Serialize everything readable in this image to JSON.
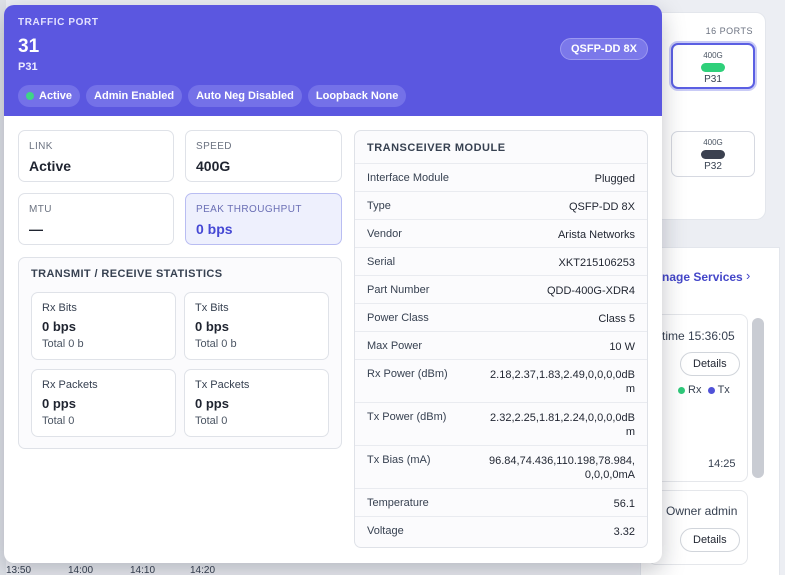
{
  "background": {
    "ports_count": "16 PORTS",
    "port_tiles": [
      {
        "speed": "400G",
        "name": "P31",
        "led_color": "#2fd07a"
      },
      {
        "speed": "400G",
        "name": "P32",
        "led_color": "#3b4150"
      }
    ],
    "manage_services": "nage Services",
    "time_text": "time 15:36:05",
    "details_label": "Details",
    "legend_rx": "Rx",
    "legend_tx": "Tx",
    "tick_time": "14:25",
    "owner_text": "Owner admin",
    "bottom_ticks": [
      "13:50",
      "14:00",
      "14:10",
      "14:20"
    ]
  },
  "header": {
    "label": "TRAFFIC PORT",
    "title": "31",
    "subtitle": "P31",
    "badge": "QSFP-DD 8X",
    "chips": [
      "Active",
      "Admin Enabled",
      "Auto Neg Disabled",
      "Loopback None"
    ]
  },
  "metrics": {
    "link": {
      "label": "LINK",
      "value": "Active"
    },
    "speed": {
      "label": "SPEED",
      "value": "400G"
    },
    "mtu": {
      "label": "MTU",
      "value": "—"
    },
    "peak": {
      "label": "PEAK THROUGHPUT",
      "value": "0 bps"
    }
  },
  "stats": {
    "title": "TRANSMIT / RECEIVE STATISTICS",
    "rx_bits": {
      "label": "Rx Bits",
      "value": "0 bps",
      "total": "Total 0 b"
    },
    "tx_bits": {
      "label": "Tx Bits",
      "value": "0 bps",
      "total": "Total 0 b"
    },
    "rx_packets": {
      "label": "Rx Packets",
      "value": "0 pps",
      "total": "Total 0"
    },
    "tx_packets": {
      "label": "Tx Packets",
      "value": "0 pps",
      "total": "Total 0"
    }
  },
  "transceiver": {
    "title": "TRANSCEIVER MODULE",
    "rows": [
      {
        "key": "Interface Module",
        "value": "Plugged"
      },
      {
        "key": "Type",
        "value": "QSFP-DD 8X"
      },
      {
        "key": "Vendor",
        "value": "Arista Networks"
      },
      {
        "key": "Serial",
        "value": "XKT215106253"
      },
      {
        "key": "Part Number",
        "value": "QDD-400G-XDR4"
      },
      {
        "key": "Power Class",
        "value": "Class 5"
      },
      {
        "key": "Max Power",
        "value": "10 W"
      },
      {
        "key": "Rx Power (dBm)",
        "value": "2.18,2.37,1.83,2.49,0,0,0,0dBm"
      },
      {
        "key": "Tx Power (dBm)",
        "value": "2.32,2.25,1.81,2.24,0,0,0,0dBm"
      },
      {
        "key": "Tx Bias (mA)",
        "value": "96.84,74.436,110.198,78.984,0,0,0,0mA"
      },
      {
        "key": "Temperature",
        "value": "56.1"
      },
      {
        "key": "Voltage",
        "value": "3.32"
      }
    ]
  },
  "colors": {
    "header_bg": "#5b57e0",
    "accent": "#4548d4",
    "status_green": "#3fd487",
    "rx_dot": "#2fc97a",
    "tx_dot": "#5052d8"
  }
}
